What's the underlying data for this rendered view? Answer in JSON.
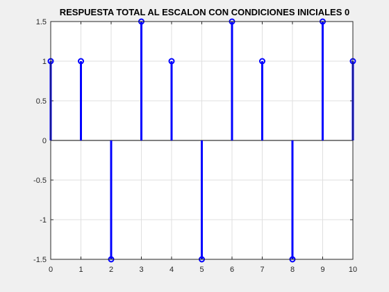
{
  "chart_data": {
    "type": "stem",
    "title": "RESPUESTA TOTAL AL ESCALON CON CONDICIONES INICIALES 0",
    "xlabel": "",
    "ylabel": "",
    "x": [
      0,
      1,
      2,
      3,
      4,
      5,
      6,
      7,
      8,
      9,
      10
    ],
    "y": [
      1,
      1,
      -1.5,
      1.5,
      1,
      -1.5,
      1.5,
      1,
      -1.5,
      1.5,
      1
    ],
    "xlim": [
      0,
      10
    ],
    "ylim": [
      -1.5,
      1.5
    ],
    "xticks": [
      "0",
      "1",
      "2",
      "3",
      "4",
      "5",
      "6",
      "7",
      "8",
      "9",
      "10"
    ],
    "yticks": [
      "-1.5",
      "-1",
      "-0.5",
      "0",
      "0.5",
      "1",
      "1.5"
    ],
    "ytick_values": [
      -1.5,
      -1,
      -0.5,
      0,
      0.5,
      1,
      1.5
    ],
    "grid": true,
    "marker": "open-circle",
    "color": "#0000ff"
  }
}
